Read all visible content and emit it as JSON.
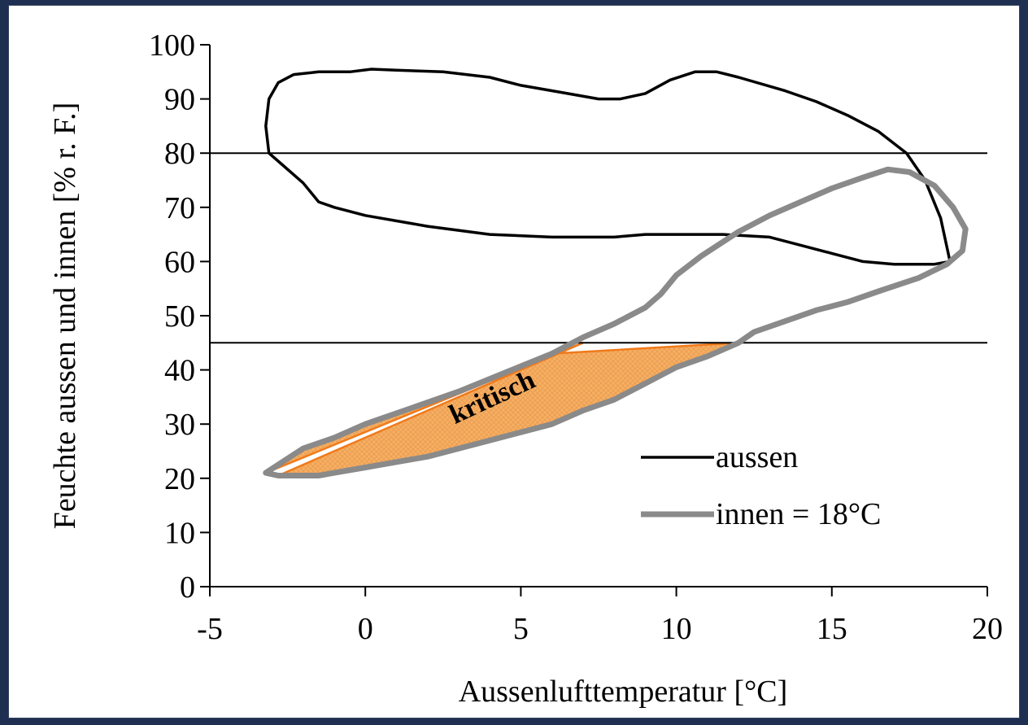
{
  "chart_data": {
    "type": "line",
    "xlabel": "Aussenlufttemperatur [°C]",
    "ylabel": "Feuchte aussen und innen  [% r. F.]",
    "xlim": [
      -5,
      20
    ],
    "ylim": [
      0,
      100
    ],
    "xticks": [
      "-5",
      "0",
      "5",
      "10",
      "15",
      "20"
    ],
    "yticks": [
      "0",
      "10",
      "20",
      "30",
      "40",
      "50",
      "60",
      "70",
      "80",
      "90",
      "100"
    ],
    "grid": false,
    "legend_position": "bottom-right",
    "reference_lines": [
      80,
      45
    ],
    "critical_region": {
      "label": "kritisch",
      "below": 45,
      "color": "#f5a04a"
    },
    "series": [
      {
        "name": "aussen",
        "color": "#000000",
        "closed": true,
        "points": [
          [
            -3.2,
            85
          ],
          [
            -3.1,
            90
          ],
          [
            -2.8,
            93
          ],
          [
            -2.3,
            94.5
          ],
          [
            -1.5,
            95
          ],
          [
            -0.5,
            95
          ],
          [
            0.2,
            95.5
          ],
          [
            1,
            95.3
          ],
          [
            2.5,
            95
          ],
          [
            4,
            94
          ],
          [
            5,
            92.5
          ],
          [
            6.5,
            91
          ],
          [
            7.5,
            90
          ],
          [
            8.2,
            90
          ],
          [
            9,
            91
          ],
          [
            9.8,
            93.5
          ],
          [
            10.6,
            95
          ],
          [
            11.3,
            95
          ],
          [
            12,
            94
          ],
          [
            13.5,
            91.5
          ],
          [
            14.5,
            89.5
          ],
          [
            15.5,
            87
          ],
          [
            16.5,
            84
          ],
          [
            17.4,
            80
          ],
          [
            18,
            75
          ],
          [
            18.5,
            68
          ],
          [
            18.8,
            60
          ],
          [
            18.3,
            59.5
          ],
          [
            17,
            59.5
          ],
          [
            16,
            60
          ],
          [
            15,
            61.5
          ],
          [
            14,
            63
          ],
          [
            13,
            64.5
          ],
          [
            11.5,
            65
          ],
          [
            10.5,
            65
          ],
          [
            9,
            65
          ],
          [
            8,
            64.5
          ],
          [
            7,
            64.5
          ],
          [
            6,
            64.5
          ],
          [
            4,
            65
          ],
          [
            2,
            66.5
          ],
          [
            0,
            68.5
          ],
          [
            -1,
            70
          ],
          [
            -1.5,
            71
          ],
          [
            -2,
            74.5
          ],
          [
            -2.7,
            78
          ],
          [
            -3.1,
            80
          ]
        ]
      },
      {
        "name": "innen = 18°C",
        "color": "#8a8a8a",
        "closed": true,
        "points": [
          [
            -3.2,
            21
          ],
          [
            -2.8,
            22.5
          ],
          [
            -2,
            25.5
          ],
          [
            -1,
            27.5
          ],
          [
            0,
            30
          ],
          [
            1,
            32
          ],
          [
            2,
            34
          ],
          [
            3,
            36
          ],
          [
            4.5,
            39.5
          ],
          [
            6,
            43
          ],
          [
            7,
            46
          ],
          [
            8,
            48.5
          ],
          [
            9,
            51.5
          ],
          [
            9.5,
            54
          ],
          [
            10,
            57.5
          ],
          [
            10.8,
            61
          ],
          [
            12,
            65.5
          ],
          [
            13,
            68.5
          ],
          [
            14,
            71
          ],
          [
            15,
            73.5
          ],
          [
            16,
            75.5
          ],
          [
            16.8,
            77
          ],
          [
            17.5,
            76.5
          ],
          [
            18.3,
            74
          ],
          [
            18.9,
            70
          ],
          [
            19.3,
            66
          ],
          [
            19.2,
            62
          ],
          [
            18.7,
            59.5
          ],
          [
            17.8,
            57
          ],
          [
            16.5,
            54.5
          ],
          [
            15.5,
            52.5
          ],
          [
            14.5,
            51
          ],
          [
            13.5,
            49
          ],
          [
            12.5,
            47
          ],
          [
            12,
            45
          ],
          [
            11,
            42.5
          ],
          [
            10,
            40.5
          ],
          [
            9,
            37.5
          ],
          [
            8,
            34.5
          ],
          [
            7,
            32.5
          ],
          [
            6,
            30
          ],
          [
            5,
            28.5
          ],
          [
            4,
            27
          ],
          [
            3,
            25.5
          ],
          [
            2,
            24
          ],
          [
            1,
            23
          ],
          [
            0,
            22
          ],
          [
            -1,
            21
          ],
          [
            -1.5,
            20.5
          ],
          [
            -2.2,
            20.5
          ],
          [
            -2.8,
            20.5
          ]
        ]
      }
    ]
  }
}
